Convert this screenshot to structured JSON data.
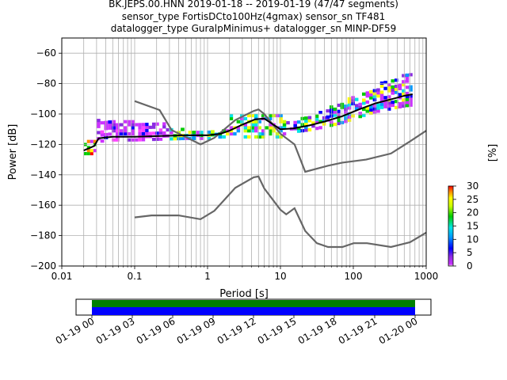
{
  "title_lines": [
    "BK.JEPS.00.HNN   2019-01-18 -- 2019-01-19  (47/47 segments)",
    "sensor_type FortisDCto100Hz(4gmax) sensor_sn TF481",
    "datalogger_type GuralpMinimus+ datalogger_sn MINP-DF59"
  ],
  "chart_data": {
    "type": "heatmap",
    "xlabel": "Period [s]",
    "ylabel": "Power [dB]",
    "xscale": "log",
    "xlim": [
      0.01,
      1000
    ],
    "ylim": [
      -200,
      -50
    ],
    "x_ticks": [
      "0.01",
      "0.1",
      "1",
      "10",
      "100",
      "1000"
    ],
    "y_ticks": [
      "−60",
      "−80",
      "−100",
      "−120",
      "−140",
      "−160",
      "−180",
      "−200"
    ],
    "y_tick_values": [
      -60,
      -80,
      -100,
      -120,
      -140,
      -160,
      -180,
      -200
    ],
    "grid": true,
    "colorbar": {
      "label": "[%]",
      "ticks": [
        "0",
        "5",
        "10",
        "15",
        "20",
        "25",
        "30"
      ],
      "tick_values": [
        0,
        5,
        10,
        15,
        20,
        25,
        30
      ],
      "range": [
        0,
        30
      ],
      "colormap": "pqlx"
    },
    "series": [
      {
        "role": "noise model upper",
        "color": "#666666",
        "points": [
          [
            0.1,
            -91.5
          ],
          [
            0.22,
            -97.4
          ],
          [
            0.32,
            -110.5
          ],
          [
            0.8,
            -120
          ],
          [
            1.24,
            -115.7
          ],
          [
            2.4,
            -104
          ],
          [
            4.3,
            -98
          ],
          [
            5.0,
            -97
          ],
          [
            6.0,
            -100
          ],
          [
            10,
            -113
          ],
          [
            15.6,
            -120
          ],
          [
            21.9,
            -138
          ],
          [
            31.6,
            -136
          ],
          [
            45,
            -134
          ],
          [
            70.8,
            -132
          ],
          [
            150,
            -130
          ],
          [
            328.2,
            -126
          ],
          [
            600,
            -118
          ],
          [
            1000,
            -111
          ]
        ]
      },
      {
        "role": "noise model lower",
        "color": "#666666",
        "points": [
          [
            0.1,
            -168
          ],
          [
            0.17,
            -166.7
          ],
          [
            0.4,
            -166.7
          ],
          [
            0.8,
            -169.2
          ],
          [
            1.24,
            -163.7
          ],
          [
            2.4,
            -148.6
          ],
          [
            4.3,
            -141.6
          ],
          [
            5.0,
            -141.1
          ],
          [
            6.0,
            -149
          ],
          [
            10,
            -163
          ],
          [
            12,
            -166
          ],
          [
            15.6,
            -162
          ],
          [
            21.9,
            -177
          ],
          [
            31.6,
            -185
          ],
          [
            45,
            -187.5
          ],
          [
            70.8,
            -187.5
          ],
          [
            101,
            -185
          ],
          [
            154,
            -185
          ],
          [
            328.2,
            -187.5
          ],
          [
            600,
            -184.4
          ],
          [
            1000,
            -178
          ]
        ]
      },
      {
        "role": "mean psd",
        "color": "#000000",
        "points": [
          [
            0.02,
            -124
          ],
          [
            0.028,
            -121
          ],
          [
            0.032,
            -116
          ],
          [
            0.05,
            -115
          ],
          [
            0.1,
            -115
          ],
          [
            0.5,
            -114
          ],
          [
            1,
            -114
          ],
          [
            1.5,
            -113
          ],
          [
            2,
            -111
          ],
          [
            3,
            -107
          ],
          [
            4.5,
            -103.5
          ],
          [
            6,
            -103
          ],
          [
            8,
            -107
          ],
          [
            10,
            -110
          ],
          [
            15,
            -109.5
          ],
          [
            25,
            -107.5
          ],
          [
            40,
            -105
          ],
          [
            70,
            -101.5
          ],
          [
            120,
            -97
          ],
          [
            200,
            -93
          ],
          [
            350,
            -90
          ],
          [
            500,
            -88
          ],
          [
            650,
            -87
          ]
        ]
      }
    ],
    "heatmap_spread": [
      {
        "x": [
          0.02,
          0.03
        ],
        "y_low": -127,
        "y_high": -118,
        "dominant": "red"
      },
      {
        "x": [
          0.03,
          0.1
        ],
        "y_low": -117,
        "y_high": -105,
        "dominant": "magenta"
      },
      {
        "x": [
          0.1,
          0.3
        ],
        "y_low": -116,
        "y_high": -106,
        "dominant": "magenta"
      },
      {
        "x": [
          0.3,
          2
        ],
        "y_low": -116,
        "y_high": -111,
        "dominant": "green"
      },
      {
        "x": [
          2,
          12
        ],
        "y_low": -116,
        "y_high": -101,
        "dominant": "green"
      },
      {
        "x": [
          12,
          650
        ],
        "y_low": -113,
        "y_high": -79,
        "dominant": "blue"
      }
    ]
  },
  "time_coverage": {
    "tick_labels": [
      "01-19 00",
      "01-19 03",
      "01-19 06",
      "01-19 09",
      "01-19 12",
      "01-19 15",
      "01-19 18",
      "01-19 21",
      "01-20 00"
    ],
    "coverage_colors": [
      "#008000",
      "#0000ff"
    ]
  }
}
